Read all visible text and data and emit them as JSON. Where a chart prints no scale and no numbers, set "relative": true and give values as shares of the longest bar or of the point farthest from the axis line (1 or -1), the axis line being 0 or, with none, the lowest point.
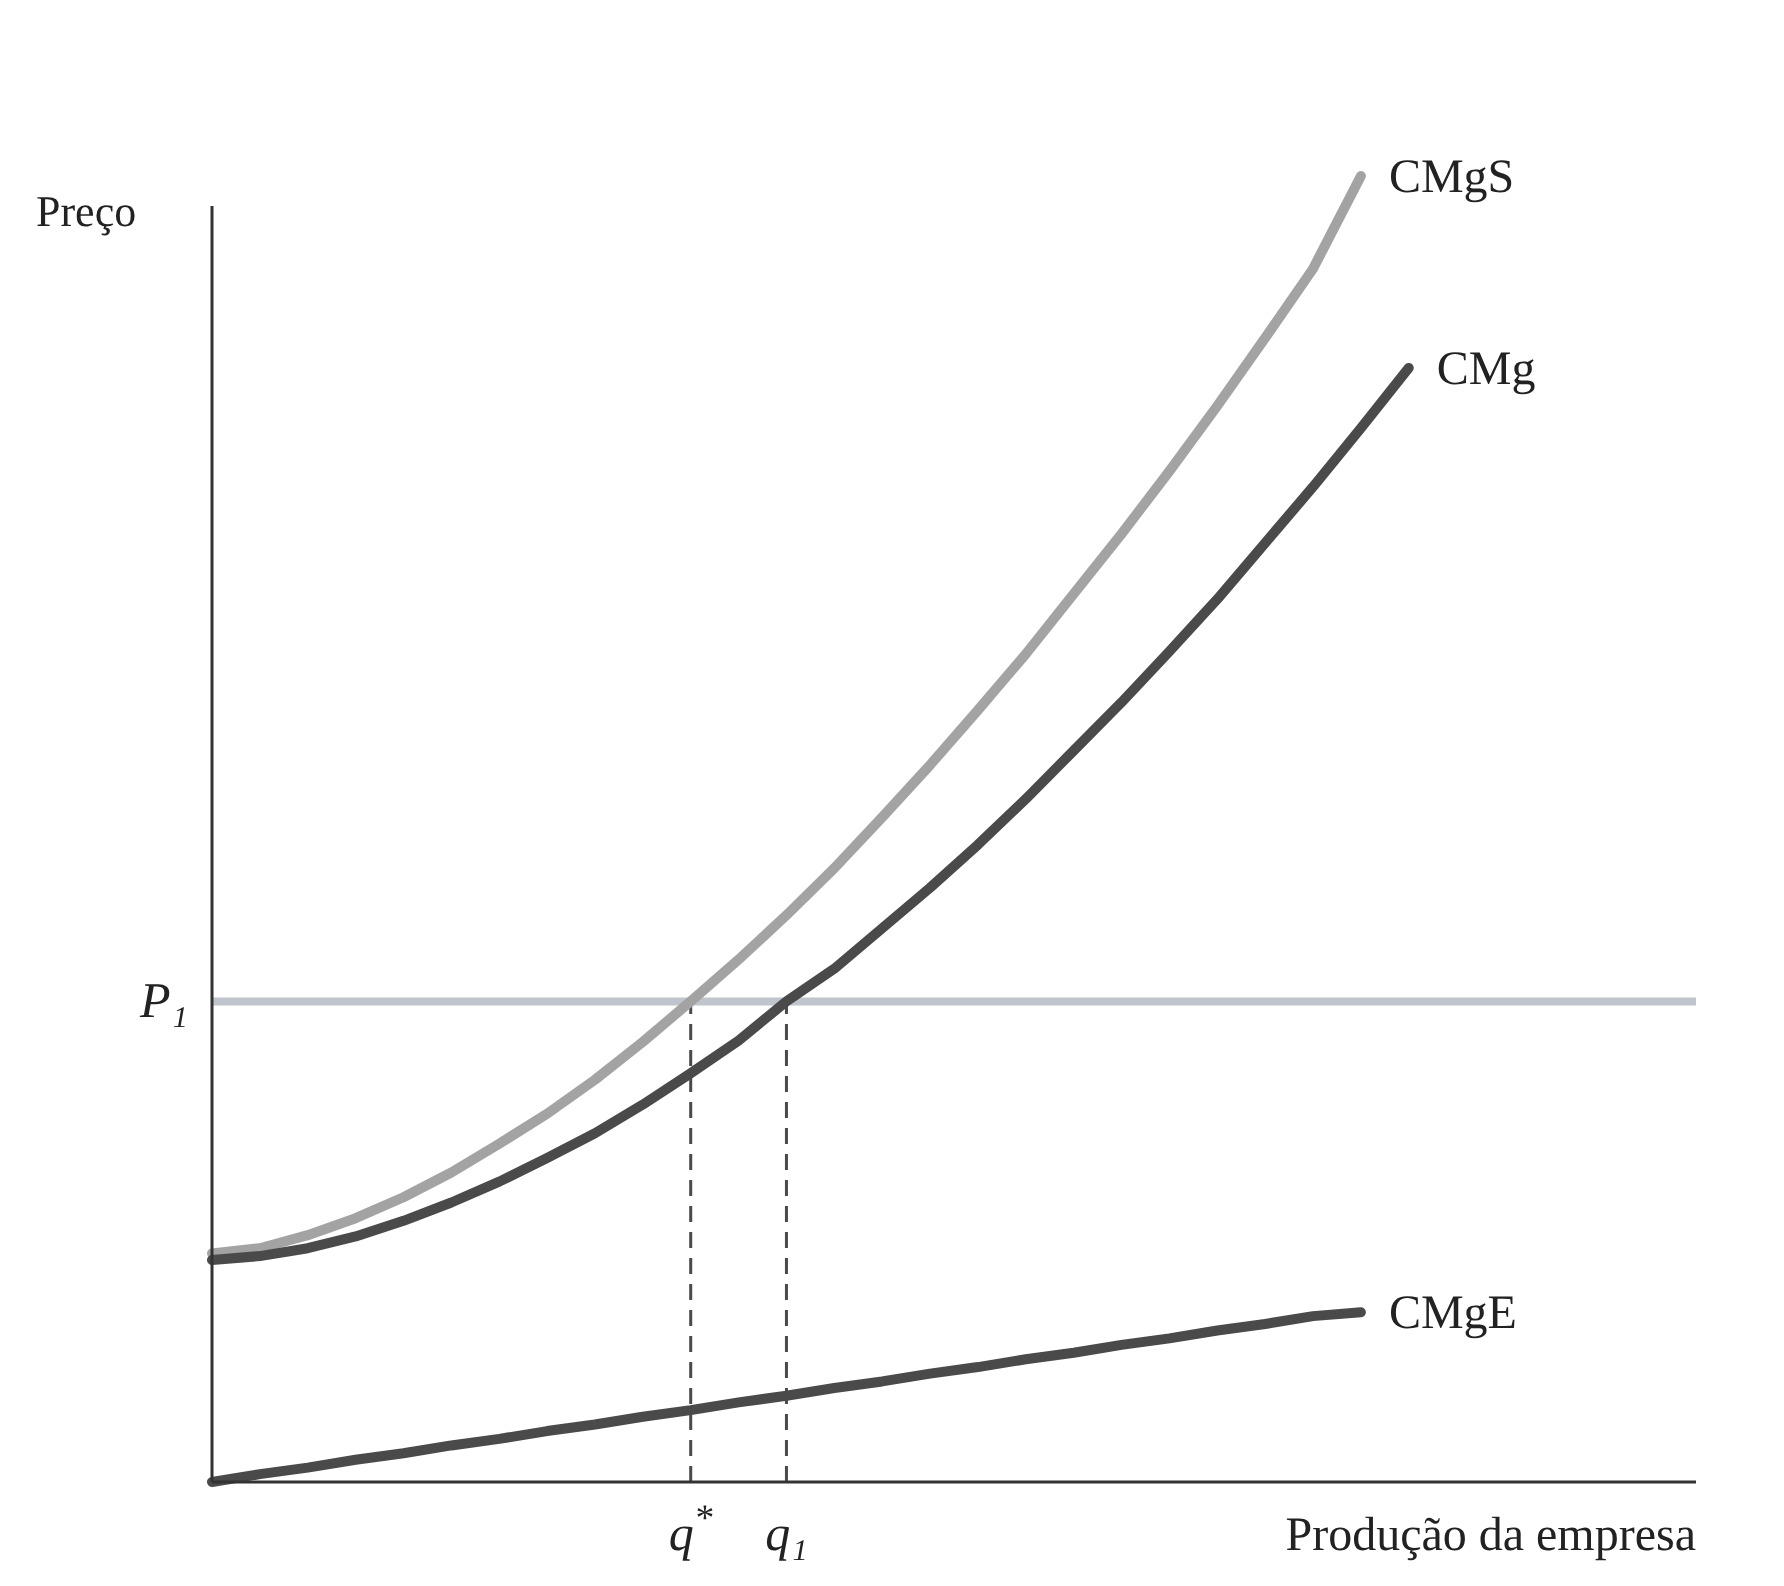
{
  "chart_data": {
    "type": "line",
    "relative": true,
    "xlabel": "Produção da empresa",
    "ylabel": "Preço",
    "grid": false,
    "marker": "none",
    "line_style": "solid",
    "categories": [
      null,
      null,
      null,
      null,
      null,
      null,
      null,
      null,
      null,
      null,
      "q$^{*}$",
      null,
      "q₁",
      null,
      null,
      null,
      null,
      null,
      null,
      null,
      null,
      null,
      null,
      null,
      null,
      null,
      null,
      null,
      null,
      null,
      null,
      null
    ],
    "series": [
      {
        "name": "CMgS",
        "color": "#a3a3a3",
        "values": [
          0.175,
          0.179,
          0.189,
          0.202,
          0.218,
          0.237,
          0.259,
          0.282,
          0.308,
          0.337,
          0.368,
          0.4,
          0.434,
          0.47,
          0.509,
          0.549,
          0.591,
          0.634,
          0.68,
          0.726,
          0.774,
          0.824,
          0.876,
          0.929,
          1,
          null,
          null,
          null,
          null,
          null,
          null,
          null
        ]
      },
      {
        "name": "CMg",
        "color": "#4a4a4a",
        "values": [
          0.17,
          0.173,
          0.179,
          0.188,
          0.2,
          0.214,
          0.23,
          0.248,
          0.267,
          0.289,
          0.313,
          0.338,
          0.368,
          0.393,
          0.424,
          0.455,
          0.488,
          0.523,
          0.56,
          0.597,
          0.636,
          0.676,
          0.719,
          0.762,
          0.807,
          0.853,
          null,
          null,
          null,
          null,
          null,
          null
        ]
      },
      {
        "name": "CMgE",
        "color": "#4a4a4a",
        "values": [
          0,
          0.006,
          0.011,
          0.017,
          0.022,
          0.028,
          0.033,
          0.039,
          0.044,
          0.05,
          0.055,
          0.061,
          0.066,
          0.072,
          0.077,
          0.083,
          0.088,
          0.094,
          0.099,
          0.105,
          0.11,
          0.116,
          0.121,
          0.127,
          0.13,
          null,
          null,
          null,
          null,
          null,
          null,
          null
        ]
      }
    ],
    "ref_lines": [
      {
        "axis": "y",
        "value": 0.368,
        "label": "P₁",
        "color": "#c0c4cc",
        "line_style": "solid"
      },
      {
        "axis": "x",
        "value": "q$^{*}$",
        "color": "#4a4a4a",
        "line_style": "dashed"
      },
      {
        "axis": "x",
        "value": "q₁",
        "color": "#4a4a4a",
        "line_style": "dashed"
      }
    ]
  }
}
